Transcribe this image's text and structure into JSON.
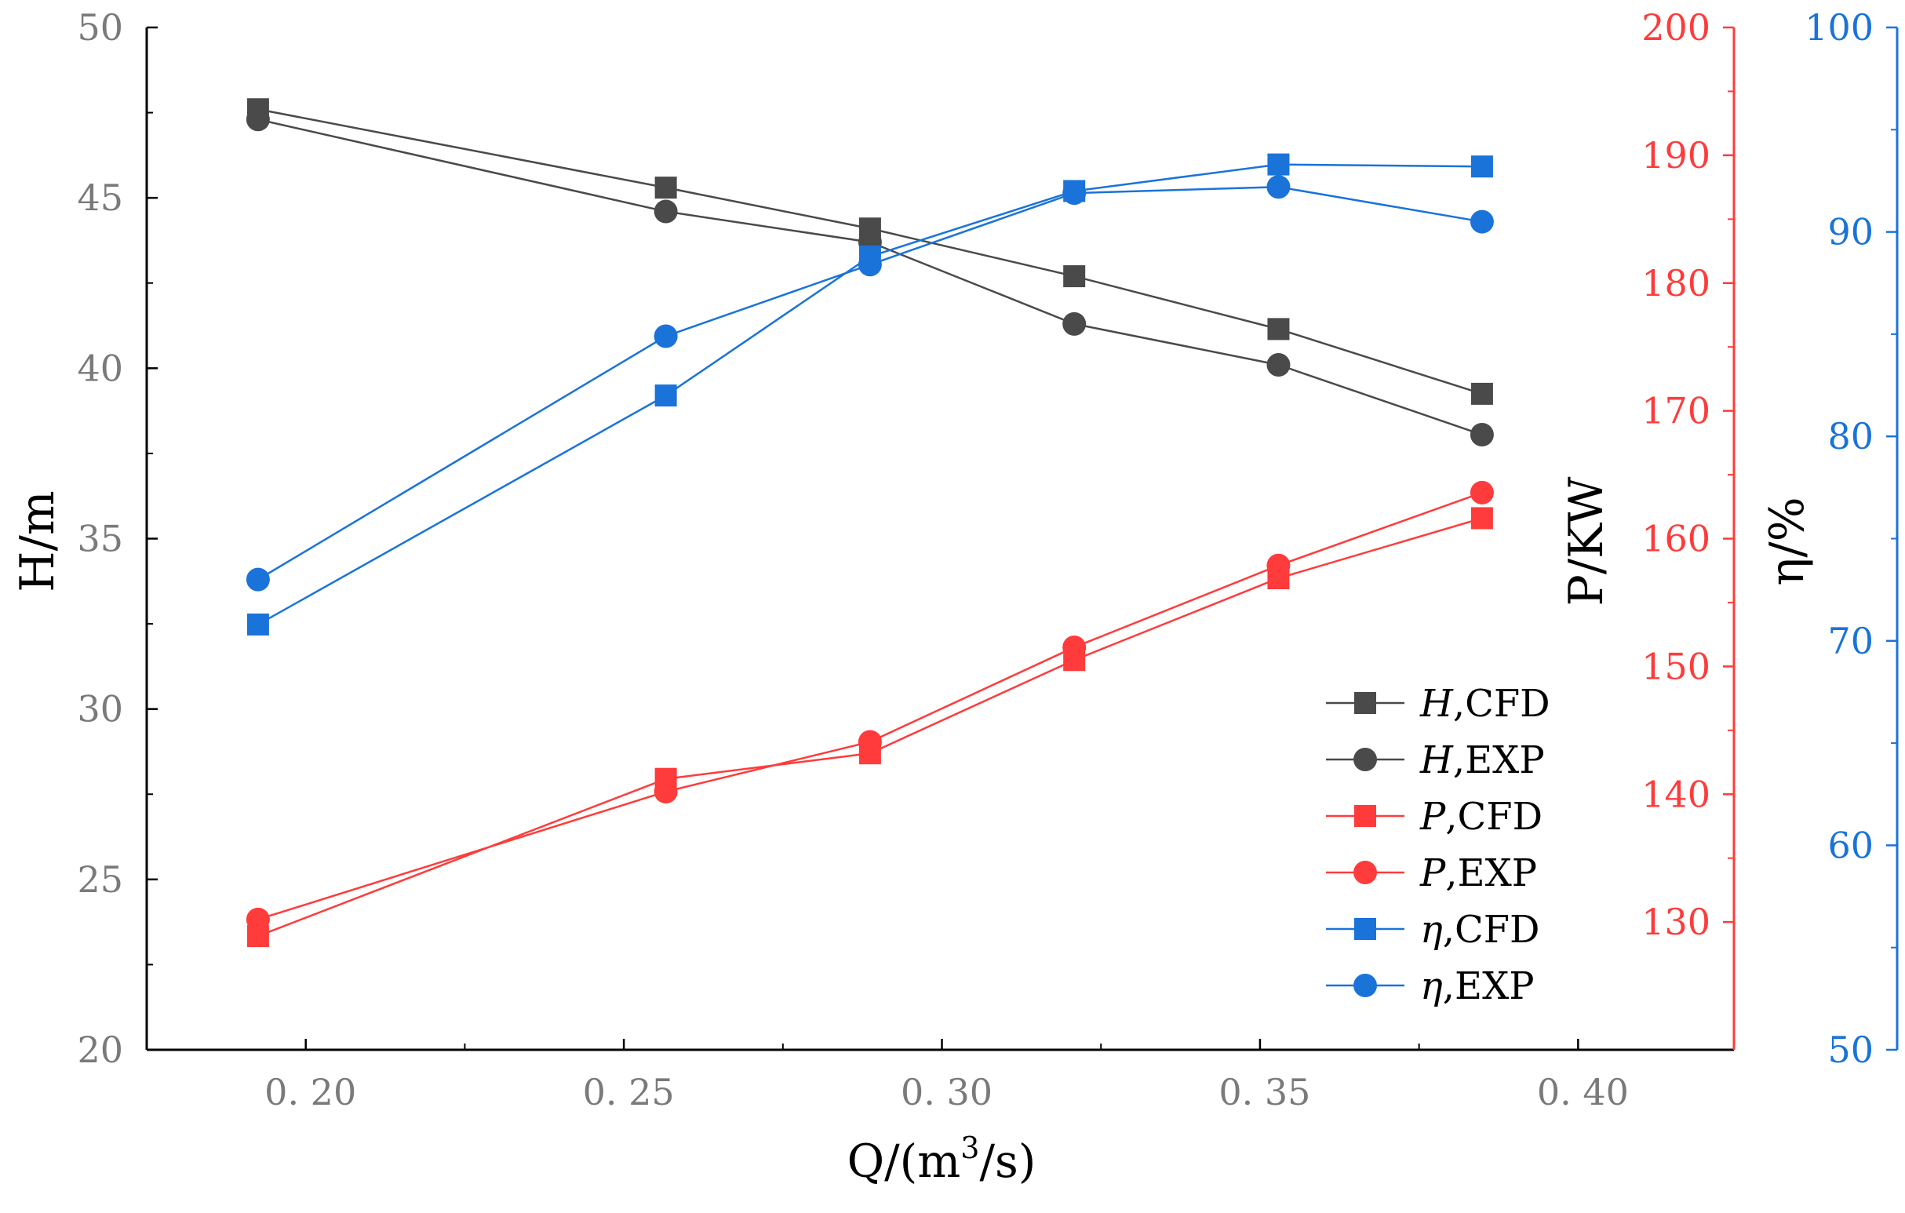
{
  "chart_data": {
    "type": "line",
    "x": [
      0.1925,
      0.2566,
      0.2887,
      0.3208,
      0.3529,
      0.3849
    ],
    "xlim": [
      0.175,
      0.4245
    ],
    "xticks": [
      0.2,
      0.25,
      0.3,
      0.35,
      0.4
    ],
    "xtick_labels": [
      "0. 20",
      "0. 25",
      "0. 30",
      "0. 35",
      "0. 40"
    ],
    "xlabel": "Q/(m",
    "xlabel_sup": "3",
    "xlabel_tail": "/s)",
    "axes": [
      {
        "id": "H",
        "label": "H/m",
        "position": "left",
        "color": "#7a7a7a",
        "lim": [
          20,
          50
        ],
        "ticks": [
          20,
          25,
          30,
          35,
          40,
          45,
          50
        ],
        "tick_labels": [
          "20",
          "25",
          "30",
          "35",
          "40",
          "45",
          "50"
        ]
      },
      {
        "id": "P",
        "label": "P/KW",
        "position": "right-inner",
        "color": "#ff3b3b",
        "lim": [
          120,
          200
        ],
        "ticks": [
          130,
          140,
          150,
          160,
          170,
          180,
          190,
          200
        ],
        "tick_labels": [
          "130",
          "140",
          "150",
          "160",
          "170",
          "180",
          "190",
          "200"
        ]
      },
      {
        "id": "E",
        "label": "η/%",
        "position": "right-outer",
        "color": "#1a73d9",
        "lim": [
          50,
          100
        ],
        "ticks": [
          50,
          60,
          70,
          80,
          90,
          100
        ],
        "tick_labels": [
          "50",
          "60",
          "70",
          "80",
          "90",
          "100"
        ]
      }
    ],
    "series": [
      {
        "name": "H,CFD",
        "italic": "H",
        "rest": ",CFD",
        "axis": "H",
        "color": "#4a4a4a",
        "marker": "square",
        "values": [
          47.6,
          45.3,
          44.1,
          42.7,
          41.15,
          39.25
        ]
      },
      {
        "name": "H,EXP",
        "italic": "H",
        "rest": ",EXP",
        "axis": "H",
        "color": "#4a4a4a",
        "marker": "circle",
        "values": [
          47.3,
          44.6,
          43.7,
          41.3,
          40.1,
          38.05
        ]
      },
      {
        "name": "P,CFD",
        "italic": "P",
        "rest": ",CFD",
        "axis": "P",
        "color": "#ff3b3b",
        "marker": "square",
        "values": [
          128.9,
          141.2,
          143.2,
          150.5,
          156.9,
          161.6
        ]
      },
      {
        "name": "P,EXP",
        "italic": "P",
        "rest": ",EXP",
        "axis": "P",
        "color": "#ff3b3b",
        "marker": "circle",
        "values": [
          130.2,
          140.2,
          144.1,
          151.5,
          157.9,
          163.6
        ]
      },
      {
        "name": "η,CFD",
        "italic": "η",
        "rest": ",CFD",
        "axis": "E",
        "color": "#1a73d9",
        "marker": "square",
        "values": [
          70.8,
          82.0,
          88.8,
          92.0,
          93.3,
          93.2
        ]
      },
      {
        "name": "η,EXP",
        "italic": "η",
        "rest": ",EXP",
        "axis": "E",
        "color": "#1a73d9",
        "marker": "circle",
        "values": [
          73.0,
          84.9,
          88.4,
          91.9,
          92.2,
          90.5
        ]
      }
    ],
    "legend_position": "center-right",
    "grid": false
  }
}
